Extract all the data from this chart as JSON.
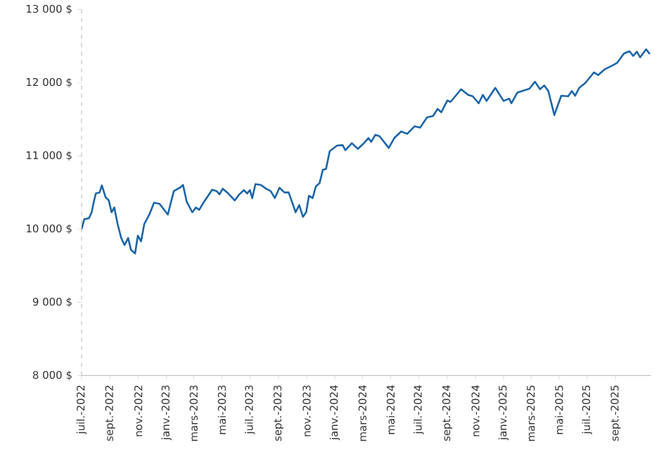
{
  "chart_data": {
    "type": "line",
    "x": [
      "2022-07-01",
      "2022-07-07",
      "2022-07-17",
      "2022-07-23",
      "2022-07-27",
      "2022-08-01",
      "2022-08-09",
      "2022-08-14",
      "2022-08-22",
      "2022-08-29",
      "2022-09-04",
      "2022-09-10",
      "2022-09-17",
      "2022-09-25",
      "2022-10-02",
      "2022-10-10",
      "2022-10-16",
      "2022-10-25",
      "2022-10-31",
      "2022-11-07",
      "2022-11-14",
      "2022-11-25",
      "2022-12-05",
      "2022-12-17",
      "2023-01-04",
      "2023-01-17",
      "2023-01-30",
      "2023-02-06",
      "2023-02-14",
      "2023-02-26",
      "2023-03-06",
      "2023-03-13",
      "2023-03-22",
      "2023-03-29",
      "2023-04-10",
      "2023-04-20",
      "2023-04-26",
      "2023-05-03",
      "2023-05-15",
      "2023-05-29",
      "2023-06-08",
      "2023-06-18",
      "2023-06-25",
      "2023-07-01",
      "2023-07-06",
      "2023-07-13",
      "2023-07-25",
      "2023-08-05",
      "2023-08-15",
      "2023-08-24",
      "2023-09-03",
      "2023-09-14",
      "2023-09-23",
      "2023-10-01",
      "2023-10-08",
      "2023-10-16",
      "2023-10-24",
      "2023-10-31",
      "2023-11-06",
      "2023-11-14",
      "2023-11-21",
      "2023-11-29",
      "2023-12-06",
      "2023-12-13",
      "2023-12-21",
      "2024-01-06",
      "2024-01-18",
      "2024-01-24",
      "2024-02-07",
      "2024-02-20",
      "2024-03-02",
      "2024-03-14",
      "2024-03-20",
      "2024-03-29",
      "2024-04-07",
      "2024-04-27",
      "2024-05-09",
      "2024-05-24",
      "2024-06-06",
      "2024-06-22",
      "2024-07-04",
      "2024-07-19",
      "2024-08-01",
      "2024-08-11",
      "2024-08-19",
      "2024-09-01",
      "2024-09-08",
      "2024-10-01",
      "2024-10-16",
      "2024-10-26",
      "2024-11-08",
      "2024-11-17",
      "2024-11-25",
      "2024-12-14",
      "2025-01-01",
      "2025-01-13",
      "2025-01-18",
      "2025-01-31",
      "2025-02-26",
      "2025-03-10",
      "2025-03-21",
      "2025-03-30",
      "2025-04-08",
      "2025-04-21",
      "2025-05-06",
      "2025-05-21",
      "2025-05-29",
      "2025-06-05",
      "2025-06-14",
      "2025-06-27",
      "2025-07-07",
      "2025-07-16",
      "2025-07-25",
      "2025-08-09",
      "2025-08-24",
      "2025-09-04",
      "2025-09-19",
      "2025-10-01",
      "2025-10-09",
      "2025-10-17",
      "2025-10-24",
      "2025-11-06",
      "2025-11-14"
    ],
    "series": [
      {
        "color": "#1a65a8",
        "values": [
          10000,
          10135,
          10148,
          10230,
          10360,
          10487,
          10500,
          10596,
          10436,
          10391,
          10230,
          10295,
          10071,
          9878,
          9782,
          9878,
          9718,
          9667,
          9910,
          9833,
          10071,
          10199,
          10359,
          10346,
          10199,
          10519,
          10564,
          10603,
          10372,
          10230,
          10295,
          10263,
          10359,
          10423,
          10538,
          10519,
          10474,
          10551,
          10487,
          10391,
          10474,
          10532,
          10487,
          10532,
          10423,
          10615,
          10603,
          10551,
          10519,
          10423,
          10564,
          10500,
          10500,
          10359,
          10230,
          10327,
          10167,
          10230,
          10455,
          10423,
          10583,
          10628,
          10808,
          10821,
          11064,
          11141,
          11147,
          11077,
          11173,
          11096,
          11160,
          11244,
          11192,
          11288,
          11269,
          11109,
          11244,
          11333,
          11301,
          11404,
          11385,
          11526,
          11545,
          11641,
          11596,
          11756,
          11737,
          11910,
          11833,
          11814,
          11718,
          11833,
          11750,
          11929,
          11750,
          11782,
          11718,
          11865,
          11917,
          12013,
          11910,
          11962,
          11885,
          11558,
          11821,
          11814,
          11885,
          11821,
          11929,
          11994,
          12071,
          12141,
          12103,
          12186,
          12231,
          12269,
          12398,
          12429,
          12365,
          12423,
          12346,
          12455,
          12391
        ]
      }
    ],
    "xlim": [
      "2022-07-01",
      "2025-11-17"
    ],
    "xticks": [
      {
        "value": "2022-07-01",
        "label": "juil.-2022"
      },
      {
        "value": "2022-09-01",
        "label": "sept.-2022"
      },
      {
        "value": "2022-11-01",
        "label": "nov.-2022"
      },
      {
        "value": "2023-01-01",
        "label": "janv.-2023"
      },
      {
        "value": "2023-03-01",
        "label": "mars-2023"
      },
      {
        "value": "2023-05-01",
        "label": "mai-2023"
      },
      {
        "value": "2023-07-01",
        "label": "juil.-2023"
      },
      {
        "value": "2023-09-01",
        "label": "sept.-2023"
      },
      {
        "value": "2023-11-01",
        "label": "nov.-2023"
      },
      {
        "value": "2024-01-01",
        "label": "janv.-2024"
      },
      {
        "value": "2024-03-01",
        "label": "mars-2024"
      },
      {
        "value": "2024-05-01",
        "label": "mai-2024"
      },
      {
        "value": "2024-07-01",
        "label": "juil.-2024"
      },
      {
        "value": "2024-09-01",
        "label": "sept.-2024"
      },
      {
        "value": "2024-11-01",
        "label": "nov.-2024"
      },
      {
        "value": "2025-01-01",
        "label": "janv.-2025"
      },
      {
        "value": "2025-03-01",
        "label": "mars-2025"
      },
      {
        "value": "2025-05-01",
        "label": "mai-2025"
      },
      {
        "value": "2025-07-01",
        "label": "juil.-2025"
      },
      {
        "value": "2025-09-01",
        "label": "sept.-2025"
      }
    ],
    "ylim": [
      8000,
      13000
    ],
    "yticks": [
      {
        "value": 8000,
        "label": "8 000 $"
      },
      {
        "value": 9000,
        "label": "9 000 $"
      },
      {
        "value": 10000,
        "label": "10 000 $"
      },
      {
        "value": 11000,
        "label": "11 000 $"
      },
      {
        "value": 12000,
        "label": "12 000 $"
      },
      {
        "value": 13000,
        "label": "13 000 $"
      }
    ]
  }
}
